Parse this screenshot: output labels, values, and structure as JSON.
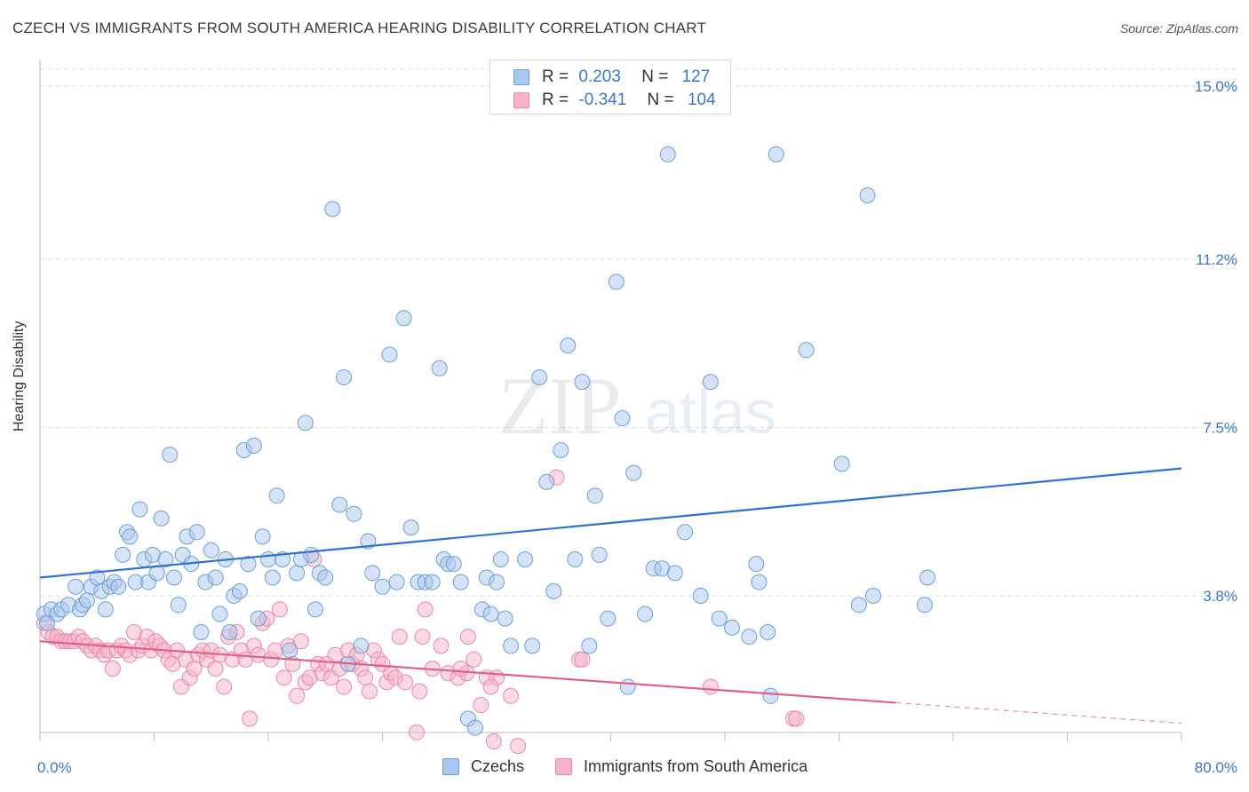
{
  "title": "CZECH VS IMMIGRANTS FROM SOUTH AMERICA HEARING DISABILITY CORRELATION CHART",
  "source": "Source: ZipAtlas.com",
  "watermark": {
    "zip": "ZIP",
    "atlas": "atlas"
  },
  "colors": {
    "blue_fill": "#a9c8f0",
    "blue_stroke": "#6f9fd8",
    "blue_line": "#2f73d0",
    "pink_fill": "#f5b4c8",
    "pink_stroke": "#e88aa8",
    "pink_line": "#e0608a",
    "axis_text": "#3a78c8",
    "grid": "#dddddd"
  },
  "legend_top": {
    "rows": [
      {
        "r_label": "R =",
        "r_value": "0.203",
        "n_label": "N =",
        "n_value": "127",
        "color": "blue"
      },
      {
        "r_label": "R =",
        "r_value": "-0.341",
        "n_label": "N =",
        "n_value": "104",
        "color": "pink"
      }
    ]
  },
  "legend_bottom": {
    "series1": "Czechs",
    "series2": "Immigrants from South America"
  },
  "chart_data": {
    "type": "scatter",
    "title": "CZECH VS IMMIGRANTS FROM SOUTH AMERICA HEARING DISABILITY CORRELATION CHART",
    "xlabel": "",
    "ylabel": "Hearing Disability",
    "xlim": [
      0,
      80
    ],
    "ylim": [
      0,
      15
    ],
    "x_tick_labels": [
      "0.0%",
      "80.0%"
    ],
    "y_ticks": [
      3.8,
      7.5,
      11.2,
      15.0
    ],
    "y_tick_labels": [
      "3.8%",
      "7.5%",
      "11.2%",
      "15.0%"
    ],
    "grid": true,
    "legend": "top-center",
    "series": [
      {
        "name": "Czechs",
        "color": "blue",
        "trend": {
          "x0": 0,
          "y0": 4.2,
          "x1": 80,
          "y1": 6.6
        },
        "points": [
          [
            0.3,
            3.4
          ],
          [
            0.5,
            3.2
          ],
          [
            0.8,
            3.5
          ],
          [
            1.2,
            3.4
          ],
          [
            1.5,
            3.5
          ],
          [
            2.0,
            3.6
          ],
          [
            2.5,
            4.0
          ],
          [
            2.8,
            3.5
          ],
          [
            3.0,
            3.6
          ],
          [
            3.3,
            3.7
          ],
          [
            3.6,
            4.0
          ],
          [
            4.0,
            4.2
          ],
          [
            4.3,
            3.9
          ],
          [
            4.6,
            3.5
          ],
          [
            4.9,
            4.0
          ],
          [
            5.2,
            4.1
          ],
          [
            5.5,
            4.0
          ],
          [
            5.8,
            4.7
          ],
          [
            6.1,
            5.2
          ],
          [
            6.3,
            5.1
          ],
          [
            6.7,
            4.1
          ],
          [
            7.0,
            5.7
          ],
          [
            7.3,
            4.6
          ],
          [
            7.6,
            4.1
          ],
          [
            7.9,
            4.7
          ],
          [
            8.2,
            4.3
          ],
          [
            8.5,
            5.5
          ],
          [
            8.8,
            4.6
          ],
          [
            9.1,
            6.9
          ],
          [
            9.4,
            4.2
          ],
          [
            9.7,
            3.6
          ],
          [
            10.0,
            4.7
          ],
          [
            10.3,
            5.1
          ],
          [
            10.6,
            4.5
          ],
          [
            11.0,
            5.2
          ],
          [
            11.3,
            3.0
          ],
          [
            11.6,
            4.1
          ],
          [
            12.0,
            4.8
          ],
          [
            12.3,
            4.2
          ],
          [
            12.6,
            3.4
          ],
          [
            13.0,
            4.6
          ],
          [
            13.3,
            3.0
          ],
          [
            13.6,
            3.8
          ],
          [
            14.0,
            3.9
          ],
          [
            14.3,
            7.0
          ],
          [
            14.6,
            4.5
          ],
          [
            15.0,
            7.1
          ],
          [
            15.3,
            3.3
          ],
          [
            15.6,
            5.1
          ],
          [
            16.0,
            4.6
          ],
          [
            16.3,
            4.2
          ],
          [
            16.6,
            6.0
          ],
          [
            17.0,
            4.6
          ],
          [
            17.5,
            2.6
          ],
          [
            18.0,
            4.3
          ],
          [
            18.3,
            4.6
          ],
          [
            18.6,
            7.6
          ],
          [
            19.0,
            4.7
          ],
          [
            19.3,
            3.5
          ],
          [
            19.6,
            4.3
          ],
          [
            20.0,
            4.2
          ],
          [
            20.5,
            12.3
          ],
          [
            21.0,
            5.8
          ],
          [
            21.3,
            8.6
          ],
          [
            21.6,
            2.3
          ],
          [
            22.0,
            5.6
          ],
          [
            22.5,
            2.7
          ],
          [
            23.0,
            5.0
          ],
          [
            23.3,
            4.3
          ],
          [
            24.0,
            4.0
          ],
          [
            24.5,
            9.1
          ],
          [
            25.0,
            4.1
          ],
          [
            25.5,
            9.9
          ],
          [
            26.0,
            5.3
          ],
          [
            26.5,
            4.1
          ],
          [
            27.0,
            4.1
          ],
          [
            27.5,
            4.1
          ],
          [
            28.0,
            8.8
          ],
          [
            28.3,
            4.6
          ],
          [
            28.6,
            4.5
          ],
          [
            29.0,
            4.5
          ],
          [
            29.5,
            4.1
          ],
          [
            30.0,
            1.1
          ],
          [
            30.5,
            0.9
          ],
          [
            31.0,
            3.5
          ],
          [
            31.3,
            4.2
          ],
          [
            31.6,
            3.4
          ],
          [
            32.0,
            4.1
          ],
          [
            32.3,
            4.6
          ],
          [
            32.6,
            3.3
          ],
          [
            33.0,
            2.7
          ],
          [
            34.0,
            4.6
          ],
          [
            34.5,
            2.7
          ],
          [
            35.0,
            8.6
          ],
          [
            35.5,
            6.3
          ],
          [
            36.0,
            3.9
          ],
          [
            36.5,
            7.0
          ],
          [
            37.0,
            9.3
          ],
          [
            37.5,
            4.6
          ],
          [
            38.0,
            8.5
          ],
          [
            38.5,
            2.7
          ],
          [
            38.9,
            6.0
          ],
          [
            39.2,
            4.7
          ],
          [
            39.8,
            3.3
          ],
          [
            40.4,
            10.7
          ],
          [
            40.8,
            7.7
          ],
          [
            41.2,
            1.8
          ],
          [
            41.6,
            6.5
          ],
          [
            42.4,
            3.4
          ],
          [
            43.0,
            4.4
          ],
          [
            43.6,
            4.4
          ],
          [
            44.0,
            13.5
          ],
          [
            44.5,
            4.3
          ],
          [
            45.2,
            5.2
          ],
          [
            46.3,
            3.8
          ],
          [
            47.0,
            8.5
          ],
          [
            47.6,
            3.3
          ],
          [
            48.5,
            3.1
          ],
          [
            49.7,
            2.9
          ],
          [
            50.2,
            4.5
          ],
          [
            50.4,
            4.1
          ],
          [
            51.0,
            3.0
          ],
          [
            51.6,
            13.5
          ],
          [
            51.2,
            1.6
          ],
          [
            53.7,
            9.2
          ],
          [
            56.2,
            6.7
          ],
          [
            58.0,
            12.6
          ],
          [
            57.4,
            3.6
          ],
          [
            58.4,
            3.8
          ],
          [
            62.0,
            3.6
          ],
          [
            62.2,
            4.2
          ]
        ]
      },
      {
        "name": "Immigrants from South America",
        "color": "pink",
        "trend": {
          "x0": 0,
          "y0": 2.8,
          "x1": 80,
          "y1": 1.0,
          "solid_until_x": 60
        },
        "points": [
          [
            0.3,
            3.2
          ],
          [
            0.6,
            3.0
          ],
          [
            0.9,
            2.9
          ],
          [
            1.2,
            2.9
          ],
          [
            1.5,
            2.8
          ],
          [
            1.8,
            2.8
          ],
          [
            2.1,
            2.8
          ],
          [
            2.4,
            2.8
          ],
          [
            2.7,
            2.9
          ],
          [
            3.0,
            2.8
          ],
          [
            3.3,
            2.7
          ],
          [
            3.6,
            2.6
          ],
          [
            3.9,
            2.7
          ],
          [
            4.2,
            2.6
          ],
          [
            4.5,
            2.5
          ],
          [
            4.8,
            2.6
          ],
          [
            5.1,
            2.2
          ],
          [
            5.4,
            2.6
          ],
          [
            5.7,
            2.7
          ],
          [
            6.0,
            2.6
          ],
          [
            6.3,
            2.5
          ],
          [
            6.6,
            3.0
          ],
          [
            6.9,
            2.6
          ],
          [
            7.2,
            2.7
          ],
          [
            7.5,
            2.9
          ],
          [
            7.8,
            2.6
          ],
          [
            8.1,
            2.8
          ],
          [
            8.4,
            2.7
          ],
          [
            8.7,
            2.6
          ],
          [
            9.0,
            2.4
          ],
          [
            9.3,
            2.3
          ],
          [
            9.6,
            2.6
          ],
          [
            9.9,
            1.8
          ],
          [
            10.2,
            2.4
          ],
          [
            10.5,
            2.0
          ],
          [
            10.8,
            2.2
          ],
          [
            11.1,
            2.5
          ],
          [
            11.4,
            2.6
          ],
          [
            11.7,
            2.4
          ],
          [
            12.0,
            2.6
          ],
          [
            12.3,
            2.2
          ],
          [
            12.6,
            2.5
          ],
          [
            12.9,
            1.8
          ],
          [
            13.2,
            2.9
          ],
          [
            13.5,
            2.4
          ],
          [
            13.8,
            3.0
          ],
          [
            14.1,
            2.6
          ],
          [
            14.4,
            2.4
          ],
          [
            14.7,
            1.1
          ],
          [
            15.0,
            2.7
          ],
          [
            15.3,
            2.5
          ],
          [
            15.6,
            3.2
          ],
          [
            15.9,
            3.3
          ],
          [
            16.2,
            2.4
          ],
          [
            16.5,
            2.6
          ],
          [
            16.8,
            3.5
          ],
          [
            17.1,
            2.0
          ],
          [
            17.4,
            2.7
          ],
          [
            17.7,
            2.3
          ],
          [
            18.0,
            1.6
          ],
          [
            18.3,
            2.8
          ],
          [
            18.6,
            1.9
          ],
          [
            18.9,
            2.0
          ],
          [
            19.2,
            4.6
          ],
          [
            19.5,
            2.3
          ],
          [
            19.8,
            2.1
          ],
          [
            20.1,
            2.3
          ],
          [
            20.4,
            2.0
          ],
          [
            20.7,
            2.5
          ],
          [
            21.0,
            2.2
          ],
          [
            21.3,
            1.8
          ],
          [
            21.6,
            2.6
          ],
          [
            21.9,
            2.3
          ],
          [
            22.2,
            2.5
          ],
          [
            22.5,
            2.2
          ],
          [
            22.8,
            2.0
          ],
          [
            23.1,
            1.7
          ],
          [
            23.4,
            2.6
          ],
          [
            23.7,
            2.4
          ],
          [
            24.0,
            2.3
          ],
          [
            24.3,
            1.9
          ],
          [
            24.6,
            2.1
          ],
          [
            24.9,
            2.0
          ],
          [
            25.2,
            2.9
          ],
          [
            25.6,
            1.9
          ],
          [
            26.4,
            0.8
          ],
          [
            26.6,
            1.7
          ],
          [
            27.5,
            2.2
          ],
          [
            27.0,
            3.5
          ],
          [
            26.8,
            2.9
          ],
          [
            28.1,
            2.7
          ],
          [
            28.6,
            2.1
          ],
          [
            29.3,
            2.0
          ],
          [
            29.9,
            2.1
          ],
          [
            29.5,
            2.2
          ],
          [
            30.0,
            2.9
          ],
          [
            30.4,
            2.4
          ],
          [
            30.9,
            1.4
          ],
          [
            31.8,
            0.6
          ],
          [
            32.0,
            2.0
          ],
          [
            31.3,
            2.0
          ],
          [
            31.6,
            1.8
          ],
          [
            33.0,
            1.6
          ],
          [
            33.5,
            0.5
          ],
          [
            36.2,
            6.4
          ],
          [
            37.8,
            2.4
          ],
          [
            38.0,
            2.4
          ],
          [
            47.0,
            1.8
          ],
          [
            52.8,
            1.1
          ],
          [
            53.0,
            1.1
          ]
        ]
      }
    ]
  }
}
